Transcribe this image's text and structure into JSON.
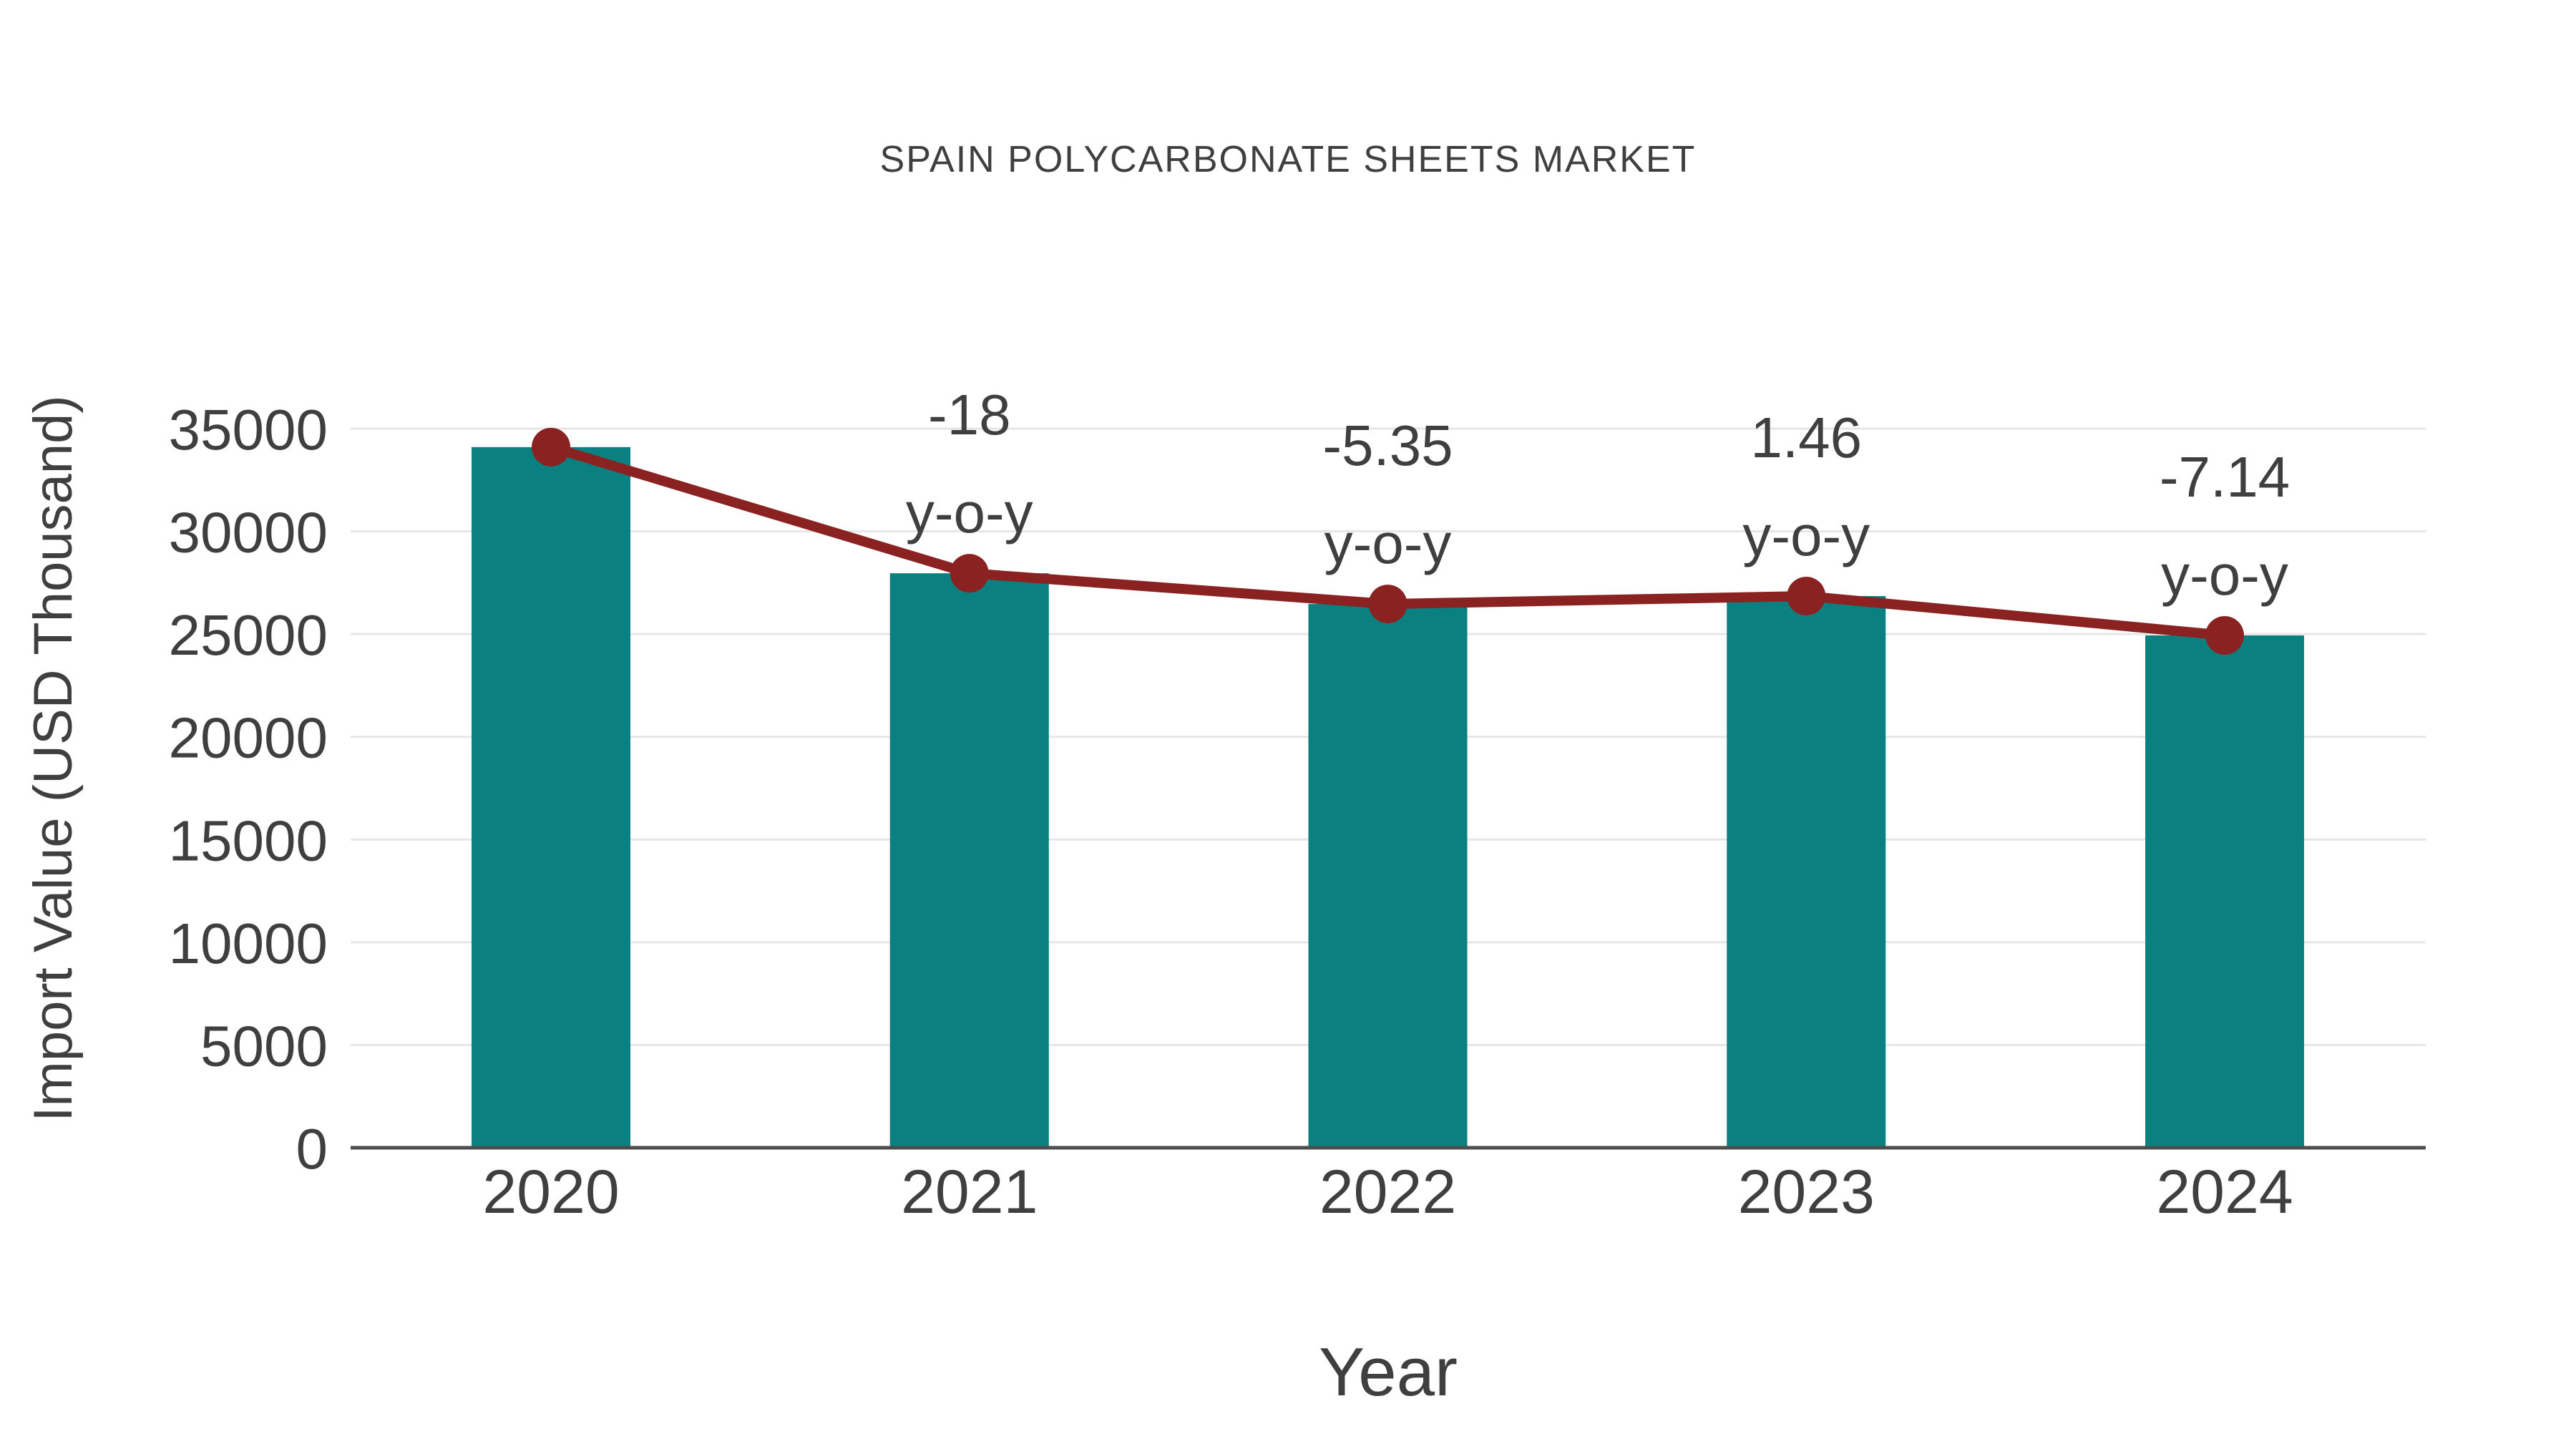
{
  "page": {
    "background": "#ffffff"
  },
  "chart_data": {
    "type": "bar",
    "title": "SPAIN POLYCARBONATE SHEETS MARKET",
    "xlabel": "Year",
    "ylabel": "Import Value (USD Thousand)",
    "categories": [
      "2020",
      "2021",
      "2022",
      "2023",
      "2024"
    ],
    "series": [
      {
        "name": "Import Value bars",
        "type": "bar",
        "values": [
          34100,
          27960,
          26465,
          26850,
          24935
        ]
      },
      {
        "name": "Import Value trend line",
        "type": "line",
        "values": [
          34100,
          27960,
          26465,
          26850,
          24935
        ]
      }
    ],
    "yoy_percent": [
      null,
      -18,
      -5.35,
      1.46,
      -7.14
    ],
    "annotations": [
      {
        "category": "2021",
        "line1": "-18",
        "line2": "y-o-y"
      },
      {
        "category": "2022",
        "line1": "-5.35",
        "line2": "y-o-y"
      },
      {
        "category": "2023",
        "line1": "1.46",
        "line2": "y-o-y"
      },
      {
        "category": "2024",
        "line1": "-7.14",
        "line2": "y-o-y"
      }
    ],
    "ylim": [
      0,
      35000
    ],
    "yticks": [
      0,
      5000,
      10000,
      15000,
      20000,
      25000,
      30000,
      35000
    ],
    "grid": true,
    "legend": false,
    "colors": {
      "bar": "#0A8080",
      "line": "#8B2222",
      "marker": "#8B2222",
      "text": "#3F3F3F",
      "grid": "#E6E6E6",
      "axis": "#4D4D4D"
    }
  }
}
